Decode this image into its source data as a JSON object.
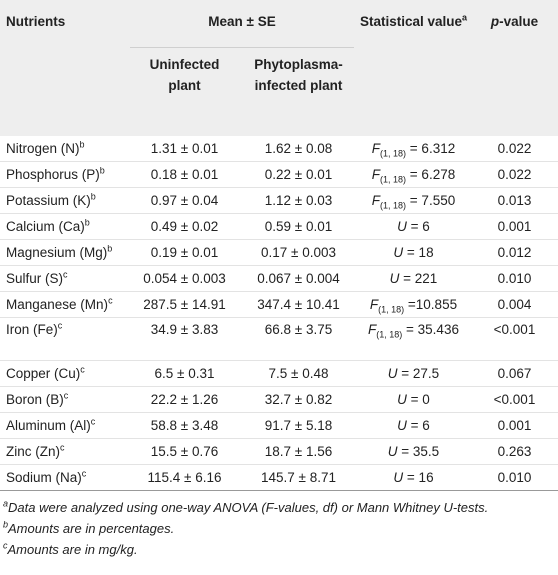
{
  "header": {
    "nutrients": "Nutrients",
    "mean_se": "Mean ± SE",
    "uninfected": "Uninfected plant",
    "infected": "Phytoplasma-infected plant",
    "stat": "Statistical value",
    "stat_note": "a",
    "p_symbol": "p",
    "p_rest": "-value"
  },
  "table": {
    "rows": [
      {
        "nutrient": "Nitrogen (N)",
        "note": "b",
        "uninfected": "1.31 ± 0.01",
        "infected": "1.62 ± 0.08",
        "stat": {
          "symbol": "F",
          "df": "(1, 18)",
          "value": " = 6.312"
        },
        "p": "0.022"
      },
      {
        "nutrient": "Phosphorus (P)",
        "note": "b",
        "uninfected": "0.18 ± 0.01",
        "infected": "0.22 ± 0.01",
        "stat": {
          "symbol": "F",
          "df": "(1, 18)",
          "value": " = 6.278"
        },
        "p": "0.022"
      },
      {
        "nutrient": "Potassium (K)",
        "note": "b",
        "uninfected": "0.97 ± 0.04",
        "infected": "1.12 ± 0.03",
        "stat": {
          "symbol": "F",
          "df": "(1, 18)",
          "value": " = 7.550"
        },
        "p": "0.013"
      },
      {
        "nutrient": "Calcium (Ca)",
        "note": "b",
        "uninfected": "0.49 ± 0.02",
        "infected": "0.59 ± 0.01",
        "stat": {
          "symbol": "U",
          "value": " = 6"
        },
        "p": "0.001"
      },
      {
        "nutrient": "Magnesium (Mg)",
        "note": "b",
        "uninfected": "0.19 ± 0.01",
        "infected": "0.17 ± 0.003",
        "stat": {
          "symbol": "U",
          "value": " = 18"
        },
        "p": "0.012"
      },
      {
        "nutrient": "Sulfur (S)",
        "note": "c",
        "uninfected": "0.054 ± 0.003",
        "infected": "0.067 ± 0.004",
        "stat": {
          "symbol": "U",
          "value": " = 221"
        },
        "p": "0.010"
      },
      {
        "nutrient": "Manganese (Mn)",
        "note": "c",
        "uninfected": "287.5 ± 14.91",
        "infected": "347.4 ± 10.41",
        "stat": {
          "symbol": "F",
          "df": "(1, 18)",
          "value": " =10.855"
        },
        "p": "0.004"
      },
      {
        "nutrient": "Iron (Fe)",
        "note": "c",
        "uninfected": "34.9 ± 3.83",
        "infected": "66.8 ± 3.75",
        "stat": {
          "symbol": "F",
          "df": "(1, 18)",
          "value": " = 35.436"
        },
        "p": "<0.001"
      },
      {
        "nutrient": "Copper (Cu)",
        "note": "c",
        "uninfected": "6.5 ± 0.31",
        "infected": "7.5 ± 0.48",
        "stat": {
          "symbol": "U",
          "value": " = 27.5"
        },
        "p": "0.067"
      },
      {
        "nutrient": "Boron (B)",
        "note": "c",
        "uninfected": "22.2 ± 1.26",
        "infected": "32.7 ± 0.82",
        "stat": {
          "symbol": "U",
          "value": " = 0"
        },
        "p": "<0.001"
      },
      {
        "nutrient": "Aluminum (Al)",
        "note": "c",
        "uninfected": "58.8 ± 3.48",
        "infected": "91.7 ± 5.18",
        "stat": {
          "symbol": "U",
          "value": " = 6"
        },
        "p": "0.001"
      },
      {
        "nutrient": "Zinc (Zn)",
        "note": "c",
        "uninfected": "15.5 ± 0.76",
        "infected": "18.7 ± 1.56",
        "stat": {
          "symbol": "U",
          "value": " = 35.5"
        },
        "p": "0.263"
      },
      {
        "nutrient": "Sodium (Na)",
        "note": "c",
        "uninfected": "115.4 ± 6.16",
        "infected": "145.7 ± 8.71",
        "stat": {
          "symbol": "U",
          "value": " = 16"
        },
        "p": "0.010"
      }
    ]
  },
  "footnotes": [
    {
      "mark": "a",
      "text": "Data were analyzed using one-way ANOVA (F-values, df) or Mann Whitney U-tests."
    },
    {
      "mark": "b",
      "text": "Amounts are in percentages."
    },
    {
      "mark": "c",
      "text": "Amounts are in mg/kg."
    }
  ]
}
